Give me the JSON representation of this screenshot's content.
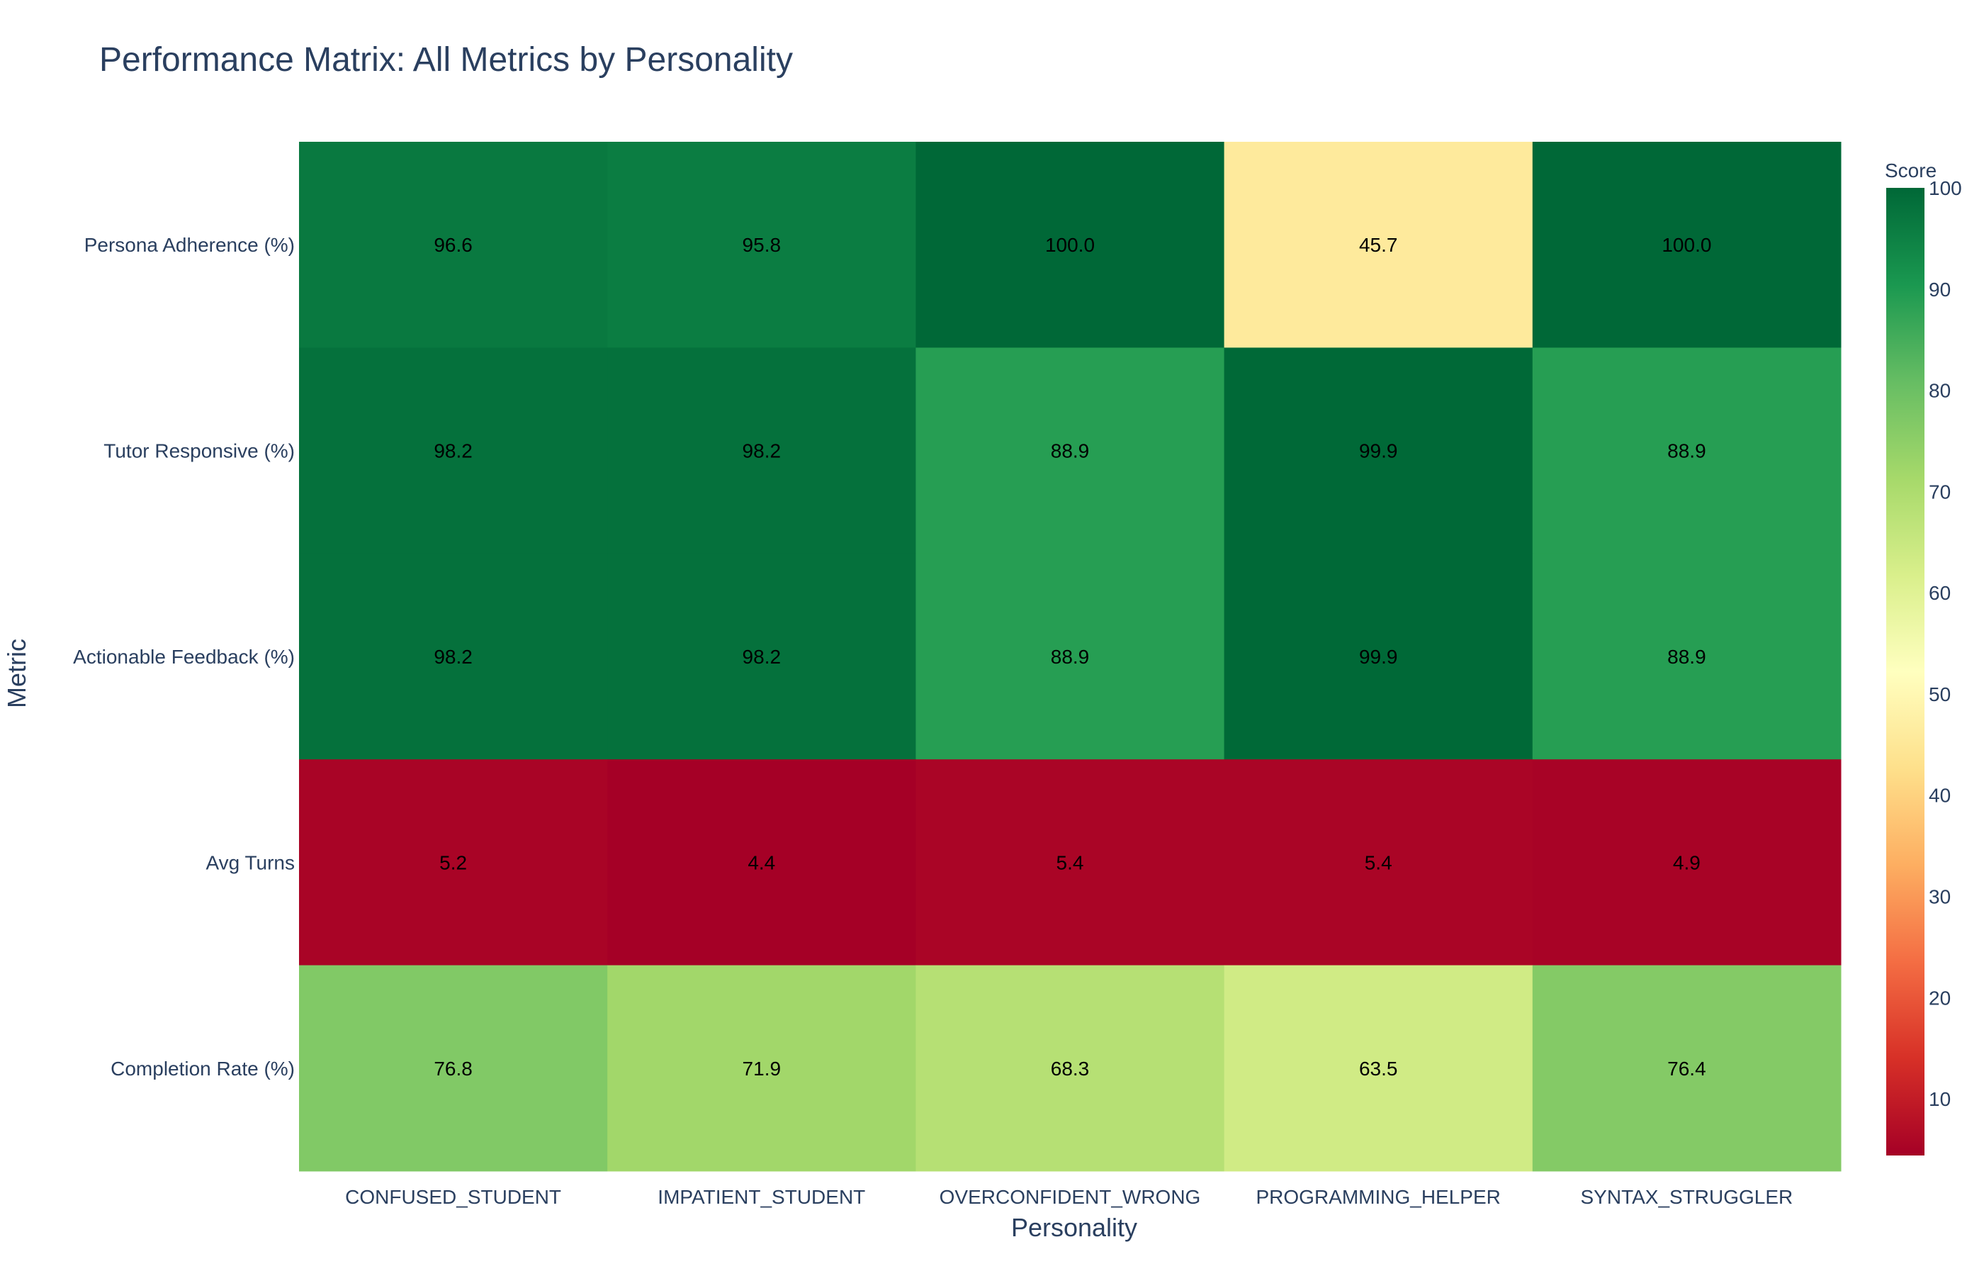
{
  "chart_data": {
    "type": "heatmap",
    "title": "Performance Matrix: All Metrics by Personality",
    "xlabel": "Personality",
    "ylabel": "Metric",
    "x": [
      "CONFUSED_STUDENT",
      "IMPATIENT_STUDENT",
      "OVERCONFIDENT_WRONG",
      "PROGRAMMING_HELPER",
      "SYNTAX_STRUGGLER"
    ],
    "y": [
      "Persona Adherence (%)",
      "Tutor Responsive (%)",
      "Actionable Feedback (%)",
      "Avg Turns",
      "Completion Rate (%)"
    ],
    "z": [
      [
        96.6,
        95.8,
        100.0,
        45.7,
        100.0
      ],
      [
        98.2,
        98.2,
        88.9,
        99.9,
        88.9
      ],
      [
        98.2,
        98.2,
        88.9,
        99.9,
        88.9
      ],
      [
        5.2,
        4.4,
        5.4,
        5.4,
        4.9
      ],
      [
        76.8,
        71.9,
        68.3,
        63.5,
        76.4
      ]
    ],
    "colorscale": "RdYlGn",
    "colorbar": {
      "title": "Score",
      "range": [
        4.4,
        100
      ],
      "ticks": [
        10,
        20,
        30,
        40,
        50,
        60,
        70,
        80,
        90,
        100
      ]
    }
  }
}
